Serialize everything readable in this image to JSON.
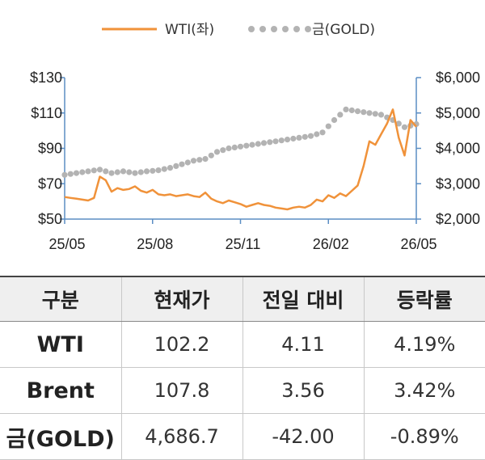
{
  "chart_data": {
    "type": "line",
    "x_ticks": [
      "25/05",
      "25/08",
      "25/11",
      "26/02",
      "26/05"
    ],
    "x_range": [
      "2025-05",
      "2026-05"
    ],
    "y_left": {
      "ticks": [
        "$50",
        "$70",
        "$90",
        "$110",
        "$130"
      ],
      "range": [
        50,
        130
      ]
    },
    "y_right": {
      "ticks": [
        "$2,000",
        "$3,000",
        "$4,000",
        "$5,000",
        "$6,000"
      ],
      "range": [
        2000,
        6000
      ]
    },
    "legend_position": "top-center",
    "series": [
      {
        "name": "WTI(좌)",
        "axis": "left",
        "style": "line",
        "color": "#f0923a",
        "x": [
          0,
          1,
          2,
          3,
          4,
          5,
          6,
          7,
          8,
          9,
          10,
          11,
          12,
          13,
          14,
          15,
          16,
          17,
          18,
          19,
          20,
          21,
          22,
          23,
          24,
          25,
          26,
          27,
          28,
          29,
          30,
          31,
          32,
          33,
          34,
          35,
          36,
          37,
          38,
          39,
          40,
          41,
          42,
          43,
          44,
          45,
          46,
          47,
          48,
          49,
          50,
          51,
          52,
          53,
          54,
          55,
          56,
          57,
          58,
          59,
          60
        ],
        "values": [
          62.5,
          62.0,
          61.5,
          61.0,
          60.5,
          62.0,
          74.0,
          72.0,
          65.5,
          67.5,
          66.5,
          67.0,
          68.5,
          66.0,
          65.0,
          66.5,
          64.0,
          63.5,
          64.0,
          63.0,
          63.5,
          64.0,
          63.0,
          62.5,
          65.0,
          61.5,
          60.0,
          59.0,
          60.5,
          59.5,
          58.5,
          57.0,
          58.0,
          59.0,
          58.0,
          57.5,
          56.5,
          56.0,
          55.5,
          56.5,
          57.0,
          56.5,
          58.0,
          61.0,
          60.0,
          63.5,
          62.0,
          64.5,
          63.0,
          66.0,
          69.0,
          80.0,
          94.0,
          92.0,
          98.0,
          104.0,
          112.0,
          96.0,
          86.0,
          106.0,
          102.2
        ]
      },
      {
        "name": "금(GOLD)",
        "axis": "right",
        "style": "dotted",
        "color": "#b3b3b3",
        "x": [
          0,
          2,
          4,
          6,
          8,
          10,
          12,
          14,
          16,
          18,
          20,
          22,
          24,
          26,
          28,
          30,
          32,
          34,
          36,
          38,
          40,
          42,
          44,
          46,
          48,
          50,
          52,
          54,
          56,
          58,
          60
        ],
        "values": [
          3250,
          3300,
          3350,
          3400,
          3300,
          3350,
          3300,
          3350,
          3380,
          3450,
          3550,
          3650,
          3700,
          3900,
          4000,
          4050,
          4100,
          4150,
          4200,
          4250,
          4300,
          4350,
          4450,
          4800,
          5100,
          5050,
          5000,
          4950,
          4800,
          4600,
          4686.7
        ]
      }
    ]
  },
  "table": {
    "headers": [
      "구분",
      "현재가",
      "전일 대비",
      "등락률"
    ],
    "rows": [
      [
        "WTI",
        "102.2",
        "4.11",
        "4.19%"
      ],
      [
        "Brent",
        "107.8",
        "3.56",
        "3.42%"
      ],
      [
        "금(GOLD)",
        "4,686.7",
        "-42.00",
        "-0.89%"
      ]
    ]
  }
}
